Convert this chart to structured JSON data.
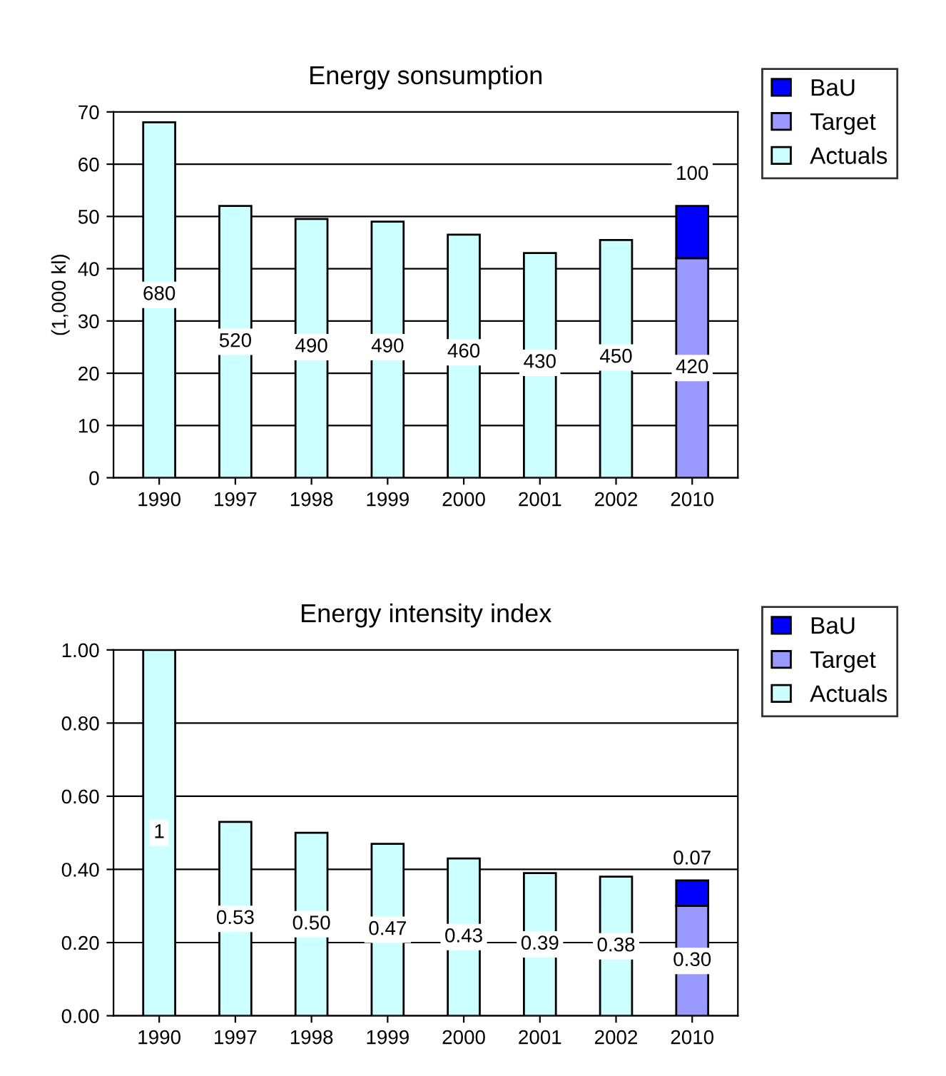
{
  "chart_data": [
    {
      "type": "bar",
      "title": "Energy sonsumption",
      "ylabel": "(1,000 kl)",
      "stacked": true,
      "grid": "y",
      "legend": "top right",
      "categories": [
        "1990",
        "1997",
        "1998",
        "1999",
        "2000",
        "2001",
        "2002",
        "2010"
      ],
      "ylim": [
        0,
        70
      ],
      "yticks": [
        0,
        10,
        20,
        30,
        40,
        50,
        60,
        70
      ],
      "series": [
        {
          "name": "Actuals",
          "color": "#ccffff",
          "values": [
            68,
            52,
            49.5,
            49,
            46.5,
            43,
            45.5,
            null
          ]
        },
        {
          "name": "Target",
          "color": "#9999ff",
          "values": [
            null,
            null,
            null,
            null,
            null,
            null,
            null,
            42
          ]
        },
        {
          "name": "BaU",
          "color": "#0000ff",
          "values": [
            null,
            null,
            null,
            null,
            null,
            null,
            null,
            10
          ]
        }
      ],
      "annotations": [
        {
          "text": "680",
          "x": "1990",
          "y": 35
        },
        {
          "text": "520",
          "x": "1997",
          "y": 26
        },
        {
          "text": "490",
          "x": "1998",
          "y": 25
        },
        {
          "text": "490",
          "x": "1999",
          "y": 25
        },
        {
          "text": "460",
          "x": "2000",
          "y": 24
        },
        {
          "text": "430",
          "x": "2001",
          "y": 22
        },
        {
          "text": "450",
          "x": "2002",
          "y": 23
        },
        {
          "text": "420",
          "x": "2010",
          "y": 21
        },
        {
          "text": "100",
          "x": "2010",
          "y": 58
        }
      ]
    },
    {
      "type": "bar",
      "title": "Energy intensity index",
      "stacked": true,
      "grid": "y",
      "legend": "top right",
      "categories": [
        "1990",
        "1997",
        "1998",
        "1999",
        "2000",
        "2001",
        "2002",
        "2010"
      ],
      "ylim": [
        0,
        1
      ],
      "yticks": [
        {
          "value": 0,
          "label": "0.00"
        },
        {
          "value": 0.2,
          "label": "0.20"
        },
        {
          "value": 0.4,
          "label": "0.40"
        },
        {
          "value": 0.6,
          "label": "0.60"
        },
        {
          "value": 0.8,
          "label": "0.80"
        },
        {
          "value": 1,
          "label": "1.00"
        }
      ],
      "series": [
        {
          "name": "Actuals",
          "color": "#ccffff",
          "values": [
            1,
            0.53,
            0.5,
            0.47,
            0.43,
            0.39,
            0.38,
            null
          ],
          "value_labels": [
            "1",
            "0.53",
            "0.50",
            "0.47",
            "0.43",
            "0.39",
            "0.38",
            null
          ]
        },
        {
          "name": "Target",
          "color": "#9999ff",
          "values": [
            null,
            null,
            null,
            null,
            null,
            null,
            null,
            0.3
          ],
          "value_labels": [
            null,
            null,
            null,
            null,
            null,
            null,
            null,
            "0.30"
          ]
        },
        {
          "name": "BaU",
          "color": "#0000ff",
          "values": [
            null,
            null,
            null,
            null,
            null,
            null,
            null,
            0.07
          ],
          "value_labels": [
            null,
            null,
            null,
            null,
            null,
            null,
            null,
            "0.07"
          ]
        }
      ]
    }
  ]
}
